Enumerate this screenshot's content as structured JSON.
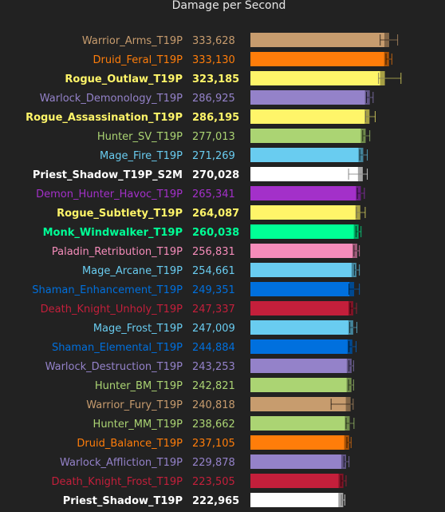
{
  "chart_data": {
    "type": "bar",
    "orientation": "horizontal",
    "title": "Damage per Second",
    "xlim": [
      0,
      333628
    ],
    "grid": false,
    "legend": "none",
    "bars": [
      {
        "name": "Warrior_Arms_T19P",
        "value": 333628,
        "value_label": "333,628",
        "color": "#C79C6E",
        "bold": false,
        "err_low": 312000,
        "err_high": 354000
      },
      {
        "name": "Druid_Feral_T19P",
        "value": 333130,
        "value_label": "333,130",
        "color": "#FF7D0A",
        "bold": false,
        "err_low": 326000,
        "err_high": 340000
      },
      {
        "name": "Rogue_Outlaw_T19P",
        "value": 323185,
        "value_label": "323,185",
        "color": "#FFF569",
        "bold": true,
        "err_low": 308000,
        "err_high": 362000
      },
      {
        "name": "Warlock_Demonology_T19P",
        "value": 286925,
        "value_label": "286,925",
        "color": "#9482C9",
        "bold": false,
        "err_low": 279000,
        "err_high": 295000
      },
      {
        "name": "Rogue_Assassination_T19P",
        "value": 286195,
        "value_label": "286,195",
        "color": "#FFF569",
        "bold": true,
        "err_low": 277000,
        "err_high": 300000
      },
      {
        "name": "Hunter_SV_T19P",
        "value": 277013,
        "value_label": "277,013",
        "color": "#ABD473",
        "bold": false,
        "err_low": 270000,
        "err_high": 287000
      },
      {
        "name": "Mage_Fire_T19P",
        "value": 271269,
        "value_label": "271,269",
        "color": "#69CCF0",
        "bold": false,
        "err_low": 263000,
        "err_high": 281000
      },
      {
        "name": "Priest_Shadow_T19P_S2M",
        "value": 270028,
        "value_label": "270,028",
        "color": "#FFFFFF",
        "bold": true,
        "err_low": 236000,
        "err_high": 281000
      },
      {
        "name": "Demon_Hunter_Havoc_T19P",
        "value": 265341,
        "value_label": "265,341",
        "color": "#A330C9",
        "bold": false,
        "err_low": 257000,
        "err_high": 274000
      },
      {
        "name": "Rogue_Subtlety_T19P",
        "value": 264087,
        "value_label": "264,087",
        "color": "#FFF569",
        "bold": true,
        "err_low": 255000,
        "err_high": 276000
      },
      {
        "name": "Monk_Windwalker_T19P",
        "value": 260038,
        "value_label": "260,038",
        "color": "#00FF96",
        "bold": true,
        "err_low": 254000,
        "err_high": 266000
      },
      {
        "name": "Paladin_Retribution_T19P",
        "value": 256831,
        "value_label": "256,831",
        "color": "#F58CBA",
        "bold": false,
        "err_low": 249000,
        "err_high": 262000
      },
      {
        "name": "Mage_Arcane_T19P",
        "value": 254661,
        "value_label": "254,661",
        "color": "#69CCF0",
        "bold": false,
        "err_low": 250000,
        "err_high": 262000
      },
      {
        "name": "Shaman_Enhancement_T19P",
        "value": 249351,
        "value_label": "249,351",
        "color": "#0070DE",
        "bold": false,
        "err_low": 237000,
        "err_high": 262000
      },
      {
        "name": "Death_Knight_Unholy_T19P",
        "value": 247337,
        "value_label": "247,337",
        "color": "#C41F3B",
        "bold": false,
        "err_low": 240000,
        "err_high": 255000
      },
      {
        "name": "Mage_Frost_T19P",
        "value": 247009,
        "value_label": "247,009",
        "color": "#69CCF0",
        "bold": false,
        "err_low": 239000,
        "err_high": 256000
      },
      {
        "name": "Shaman_Elemental_T19P",
        "value": 244884,
        "value_label": "244,884",
        "color": "#0070DE",
        "bold": false,
        "err_low": 237000,
        "err_high": 254000
      },
      {
        "name": "Warlock_Destruction_T19P",
        "value": 243253,
        "value_label": "243,253",
        "color": "#9482C9",
        "bold": false,
        "err_low": 237000,
        "err_high": 248000
      },
      {
        "name": "Hunter_BM_T19P",
        "value": 242821,
        "value_label": "242,821",
        "color": "#ABD473",
        "bold": false,
        "err_low": 236000,
        "err_high": 248000
      },
      {
        "name": "Warrior_Fury_T19P",
        "value": 240818,
        "value_label": "240,818",
        "color": "#C79C6E",
        "bold": false,
        "err_low": 194000,
        "err_high": 247000
      },
      {
        "name": "Hunter_MM_T19P",
        "value": 238662,
        "value_label": "238,662",
        "color": "#ABD473",
        "bold": false,
        "err_low": 230000,
        "err_high": 249000
      },
      {
        "name": "Druid_Balance_T19P",
        "value": 237105,
        "value_label": "237,105",
        "color": "#FF7D0A",
        "bold": false,
        "err_low": 232000,
        "err_high": 242000
      },
      {
        "name": "Warlock_Affliction_T19P",
        "value": 229878,
        "value_label": "229,878",
        "color": "#9482C9",
        "bold": false,
        "err_low": 225000,
        "err_high": 237000
      },
      {
        "name": "Death_Knight_Frost_T19P",
        "value": 223505,
        "value_label": "223,505",
        "color": "#C41F3B",
        "bold": false,
        "err_low": 218000,
        "err_high": 230000
      },
      {
        "name": "Priest_Shadow_T19P",
        "value": 222965,
        "value_label": "222,965",
        "color": "#FFFFFF",
        "bold": true,
        "err_low": 219000,
        "err_high": 227000
      }
    ]
  }
}
